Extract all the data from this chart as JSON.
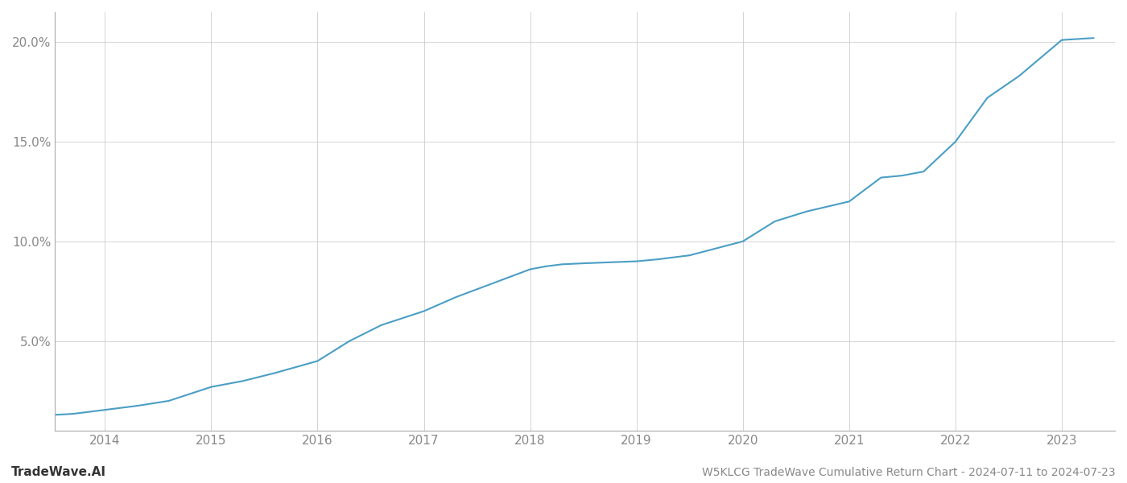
{
  "title": "W5KLCG TradeWave Cumulative Return Chart - 2024-07-11 to 2024-07-23",
  "watermark": "TradeWave.AI",
  "line_color": "#4a9ec4",
  "background_color": "#ffffff",
  "grid_color": "#cccccc",
  "x_years": [
    2014,
    2015,
    2016,
    2017,
    2018,
    2019,
    2020,
    2021,
    2022,
    2023
  ],
  "x_data": [
    2013.53,
    2013.7,
    2014.0,
    2014.3,
    2014.6,
    2015.0,
    2015.3,
    2015.6,
    2016.0,
    2016.3,
    2016.6,
    2017.0,
    2017.3,
    2017.6,
    2018.0,
    2018.15,
    2018.3,
    2018.5,
    2019.0,
    2019.2,
    2019.5,
    2020.0,
    2020.3,
    2020.6,
    2021.0,
    2021.3,
    2021.5,
    2021.7,
    2022.0,
    2022.3,
    2022.6,
    2023.0,
    2023.3
  ],
  "y_data": [
    1.3,
    1.35,
    1.55,
    1.75,
    2.0,
    2.7,
    3.0,
    3.4,
    4.0,
    5.0,
    5.8,
    6.5,
    7.2,
    7.8,
    8.6,
    8.75,
    8.85,
    8.9,
    9.0,
    9.1,
    9.3,
    10.0,
    11.0,
    11.5,
    12.0,
    13.2,
    13.3,
    13.5,
    15.0,
    17.2,
    18.3,
    20.1,
    20.2
  ],
  "yticks": [
    5.0,
    10.0,
    15.0,
    20.0
  ],
  "xlim": [
    2013.53,
    2023.5
  ],
  "ylim": [
    0.5,
    21.5
  ],
  "title_fontsize": 10,
  "watermark_fontsize": 11,
  "tick_fontsize": 11,
  "line_width": 1.5
}
